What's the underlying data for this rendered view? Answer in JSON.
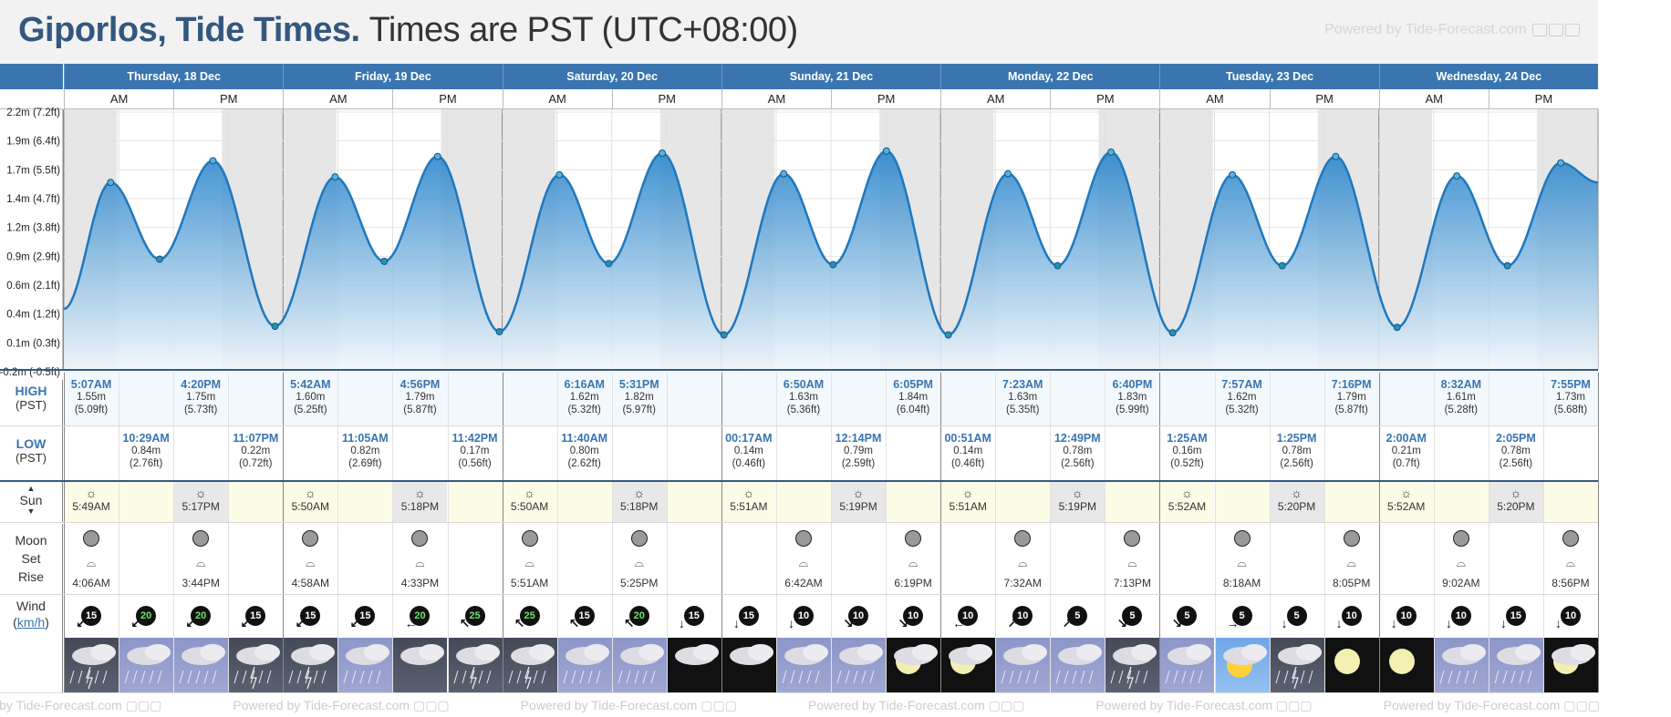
{
  "header": {
    "place": "Giporlos, Tide Times.",
    "timezone": "Times are PST (UTC+08:00)",
    "powered_by": "Powered by Tide-Forecast.com"
  },
  "days": [
    {
      "label": "Thursday, 18 Dec"
    },
    {
      "label": "Friday, 19 Dec"
    },
    {
      "label": "Saturday, 20 Dec"
    },
    {
      "label": "Sunday, 21 Dec"
    },
    {
      "label": "Monday, 22 Dec"
    },
    {
      "label": "Tuesday, 23 Dec"
    },
    {
      "label": "Wednesday, 24 Dec"
    }
  ],
  "ampm": {
    "am": "AM",
    "pm": "PM"
  },
  "y_axis": {
    "ticks": [
      "2.2m (7.2ft)",
      "1.9m (6.4ft)",
      "1.7m (5.5ft)",
      "1.4m (4.7ft)",
      "1.2m (3.8ft)",
      "0.9m (2.9ft)",
      "0.6m (2.1ft)",
      "0.4m (1.2ft)",
      "0.1m (0.3ft)",
      "-0.2m (-0.5ft)"
    ],
    "range": [
      -0.2,
      2.2
    ]
  },
  "chart_data": {
    "type": "area",
    "ylabel": "",
    "ylim": [
      -0.2,
      2.2
    ],
    "series": [
      {
        "name": "",
        "points_hours": [
          [
            0,
            0.38
          ],
          [
            5.12,
            1.55
          ],
          [
            10.48,
            0.84
          ],
          [
            16.33,
            1.75
          ],
          [
            23.12,
            0.22
          ],
          [
            29.7,
            1.6
          ],
          [
            35.08,
            0.82
          ],
          [
            40.93,
            1.79
          ],
          [
            47.7,
            0.17
          ],
          [
            54.27,
            1.62
          ],
          [
            59.67,
            0.8
          ],
          [
            65.52,
            1.82
          ],
          [
            72.28,
            0.14
          ],
          [
            78.83,
            1.63
          ],
          [
            84.23,
            0.79
          ],
          [
            90.08,
            1.84
          ],
          [
            96.85,
            0.14
          ],
          [
            103.38,
            1.63
          ],
          [
            108.82,
            0.78
          ],
          [
            114.67,
            1.83
          ],
          [
            121.42,
            0.16
          ],
          [
            127.95,
            1.62
          ],
          [
            133.42,
            0.78
          ],
          [
            139.27,
            1.79
          ],
          [
            146.0,
            0.21
          ],
          [
            152.53,
            1.61
          ],
          [
            158.08,
            0.78
          ],
          [
            163.92,
            1.73
          ],
          [
            168,
            1.55
          ]
        ]
      }
    ]
  },
  "row_labels": {
    "high": "HIGH",
    "high_sub": "(PST)",
    "low": "LOW",
    "low_sub": "(PST)",
    "sun": "Sun",
    "moon": "Moon",
    "set": "Set",
    "rise": "Rise",
    "wind": "Wind",
    "wind_unit": "km/h"
  },
  "highs": [
    {
      "col": 0,
      "time": "5:07AM",
      "m": "1.55m",
      "ft": "(5.09ft)"
    },
    {
      "col": 2,
      "time": "4:20PM",
      "m": "1.75m",
      "ft": "(5.73ft)"
    },
    {
      "col": 4,
      "time": "5:42AM",
      "m": "1.60m",
      "ft": "(5.25ft)"
    },
    {
      "col": 6,
      "time": "4:56PM",
      "m": "1.79m",
      "ft": "(5.87ft)"
    },
    {
      "col": 9,
      "time": "6:16AM",
      "m": "1.62m",
      "ft": "(5.32ft)"
    },
    {
      "col": 10,
      "time": "5:31PM",
      "m": "1.82m",
      "ft": "(5.97ft)"
    },
    {
      "col": 13,
      "time": "6:50AM",
      "m": "1.63m",
      "ft": "(5.36ft)"
    },
    {
      "col": 15,
      "time": "6:05PM",
      "m": "1.84m",
      "ft": "(6.04ft)"
    },
    {
      "col": 17,
      "time": "7:23AM",
      "m": "1.63m",
      "ft": "(5.35ft)"
    },
    {
      "col": 19,
      "time": "6:40PM",
      "m": "1.83m",
      "ft": "(5.99ft)"
    },
    {
      "col": 21,
      "time": "7:57AM",
      "m": "1.62m",
      "ft": "(5.32ft)"
    },
    {
      "col": 23,
      "time": "7:16PM",
      "m": "1.79m",
      "ft": "(5.87ft)"
    },
    {
      "col": 25,
      "time": "8:32AM",
      "m": "1.61m",
      "ft": "(5.28ft)"
    },
    {
      "col": 27,
      "time": "7:55PM",
      "m": "1.73m",
      "ft": "(5.68ft)"
    }
  ],
  "lows": [
    {
      "col": 1,
      "time": "10:29AM",
      "m": "0.84m",
      "ft": "(2.76ft)"
    },
    {
      "col": 3,
      "time": "11:07PM",
      "m": "0.22m",
      "ft": "(0.72ft)"
    },
    {
      "col": 5,
      "time": "11:05AM",
      "m": "0.82m",
      "ft": "(2.69ft)"
    },
    {
      "col": 7,
      "time": "11:42PM",
      "m": "0.17m",
      "ft": "(0.56ft)"
    },
    {
      "col": 9,
      "time": "11:40AM",
      "m": "0.80m",
      "ft": "(2.62ft)"
    },
    {
      "col": 12,
      "time": "00:17AM",
      "m": "0.14m",
      "ft": "(0.46ft)"
    },
    {
      "col": 14,
      "time": "12:14PM",
      "m": "0.79m",
      "ft": "(2.59ft)"
    },
    {
      "col": 16,
      "time": "00:51AM",
      "m": "0.14m",
      "ft": "(0.46ft)"
    },
    {
      "col": 18,
      "time": "12:49PM",
      "m": "0.78m",
      "ft": "(2.56ft)"
    },
    {
      "col": 20,
      "time": "1:25AM",
      "m": "0.16m",
      "ft": "(0.52ft)"
    },
    {
      "col": 22,
      "time": "1:25PM",
      "m": "0.78m",
      "ft": "(2.56ft)"
    },
    {
      "col": 24,
      "time": "2:00AM",
      "m": "0.21m",
      "ft": "(0.7ft)"
    },
    {
      "col": 26,
      "time": "2:05PM",
      "m": "0.78m",
      "ft": "(2.56ft)"
    }
  ],
  "sun": [
    {
      "col": 0,
      "time": "5:49AM",
      "kind": "rise"
    },
    {
      "col": 2,
      "time": "5:17PM",
      "kind": "set"
    },
    {
      "col": 4,
      "time": "5:50AM",
      "kind": "rise"
    },
    {
      "col": 6,
      "time": "5:18PM",
      "kind": "set"
    },
    {
      "col": 8,
      "time": "5:50AM",
      "kind": "rise"
    },
    {
      "col": 10,
      "time": "5:18PM",
      "kind": "set"
    },
    {
      "col": 12,
      "time": "5:51AM",
      "kind": "rise"
    },
    {
      "col": 14,
      "time": "5:19PM",
      "kind": "set"
    },
    {
      "col": 16,
      "time": "5:51AM",
      "kind": "rise"
    },
    {
      "col": 18,
      "time": "5:19PM",
      "kind": "set"
    },
    {
      "col": 20,
      "time": "5:52AM",
      "kind": "rise"
    },
    {
      "col": 22,
      "time": "5:20PM",
      "kind": "set"
    },
    {
      "col": 24,
      "time": "5:52AM",
      "kind": "rise"
    },
    {
      "col": 26,
      "time": "5:20PM",
      "kind": "set"
    }
  ],
  "moon": [
    {
      "col": 0,
      "time": "4:06AM"
    },
    {
      "col": 2,
      "time": "3:44PM"
    },
    {
      "col": 4,
      "time": "4:58AM"
    },
    {
      "col": 6,
      "time": "4:33PM"
    },
    {
      "col": 8,
      "time": "5:51AM"
    },
    {
      "col": 10,
      "time": "5:25PM"
    },
    {
      "col": 13,
      "time": "6:42AM"
    },
    {
      "col": 15,
      "time": "6:19PM"
    },
    {
      "col": 17,
      "time": "7:32AM"
    },
    {
      "col": 19,
      "time": "7:13PM"
    },
    {
      "col": 21,
      "time": "8:18AM"
    },
    {
      "col": 23,
      "time": "8:05PM"
    },
    {
      "col": 25,
      "time": "9:02AM"
    },
    {
      "col": 27,
      "time": "8:56PM"
    }
  ],
  "wind": [
    {
      "v": "15",
      "gust": false,
      "dir": "↙"
    },
    {
      "v": "20",
      "gust": true,
      "dir": "↙"
    },
    {
      "v": "20",
      "gust": true,
      "dir": "↙"
    },
    {
      "v": "15",
      "gust": false,
      "dir": "↙"
    },
    {
      "v": "15",
      "gust": false,
      "dir": "↙"
    },
    {
      "v": "15",
      "gust": false,
      "dir": "↙"
    },
    {
      "v": "20",
      "gust": true,
      "dir": "←"
    },
    {
      "v": "25",
      "gust": true,
      "dir": "↖"
    },
    {
      "v": "25",
      "gust": true,
      "dir": "↖"
    },
    {
      "v": "15",
      "gust": false,
      "dir": "↖"
    },
    {
      "v": "20",
      "gust": true,
      "dir": "↖"
    },
    {
      "v": "15",
      "gust": false,
      "dir": "↓"
    },
    {
      "v": "15",
      "gust": false,
      "dir": "↓"
    },
    {
      "v": "10",
      "gust": false,
      "dir": "↓"
    },
    {
      "v": "10",
      "gust": false,
      "dir": "↘"
    },
    {
      "v": "10",
      "gust": false,
      "dir": "↘"
    },
    {
      "v": "10",
      "gust": false,
      "dir": "←"
    },
    {
      "v": "10",
      "gust": false,
      "dir": "↗"
    },
    {
      "v": "5",
      "gust": false,
      "dir": "↗"
    },
    {
      "v": "5",
      "gust": false,
      "dir": "↘"
    },
    {
      "v": "5",
      "gust": false,
      "dir": "↘"
    },
    {
      "v": "5",
      "gust": false,
      "dir": "→"
    },
    {
      "v": "5",
      "gust": false,
      "dir": "↓"
    },
    {
      "v": "10",
      "gust": false,
      "dir": "↓"
    },
    {
      "v": "10",
      "gust": false,
      "dir": "↓"
    },
    {
      "v": "10",
      "gust": false,
      "dir": "↓"
    },
    {
      "v": "15",
      "gust": false,
      "dir": "↓"
    },
    {
      "v": "10",
      "gust": false,
      "dir": "↓"
    }
  ],
  "weather": [
    "storm-dk",
    "rain",
    "rain",
    "storm-dk",
    "storm-dk",
    "rain",
    "cloud-dk",
    "storm-dk",
    "storm-dk",
    "rain",
    "rain",
    "cloud-blk",
    "cloud-blk",
    "rain",
    "rain",
    "moon-cloud",
    "moon-cloud",
    "rain",
    "rain",
    "storm-dk",
    "rain",
    "sun-cloud",
    "storm-dk",
    "moon",
    "moon",
    "rain",
    "rain",
    "moon-cloud"
  ],
  "colors": {
    "header_blue": "#3a75b0",
    "title_blue": "#34577f",
    "tide_blue": "#2e8ccf"
  }
}
